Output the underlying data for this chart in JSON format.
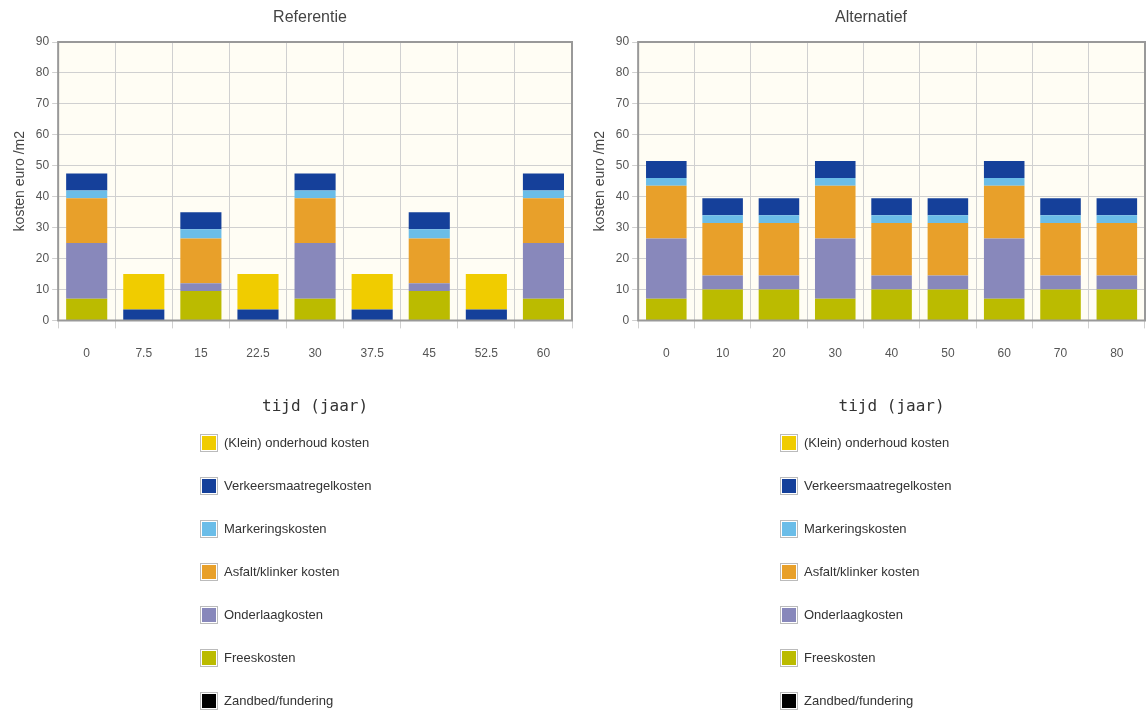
{
  "chart_data": [
    {
      "type": "bar",
      "title": "Referentie",
      "xlabel": "tijd (jaar)",
      "ylabel": "kosten euro /m2",
      "categories": [
        "0",
        "7.5",
        "15",
        "22.5",
        "30",
        "37.5",
        "45",
        "52.5",
        "60"
      ],
      "stacked": true,
      "ylim": [
        0,
        90
      ],
      "yticks": [
        0,
        10,
        20,
        30,
        40,
        50,
        60,
        70,
        80,
        90
      ],
      "grid": true,
      "legend": "bottom",
      "series": [
        {
          "name": "Zandbed/fundering",
          "color": "#000000",
          "values": [
            0,
            0,
            0,
            0,
            0,
            0,
            0,
            0,
            0
          ]
        },
        {
          "name": "Freeskosten",
          "color": "#bbbb00",
          "values": [
            7,
            0,
            9.5,
            0,
            7,
            0,
            9.5,
            0,
            7
          ]
        },
        {
          "name": "Onderlaagkosten",
          "color": "#8888bb",
          "values": [
            18,
            0,
            2.5,
            0,
            18,
            0,
            2.5,
            0,
            18
          ]
        },
        {
          "name": "Asfalt/klinker kosten",
          "color": "#e8a02a",
          "values": [
            14.5,
            0,
            14.5,
            0,
            14.5,
            0,
            14.5,
            0,
            14.5
          ]
        },
        {
          "name": "Markeringskosten",
          "color": "#6bbde8",
          "values": [
            2.5,
            0,
            3,
            0,
            2.5,
            0,
            3,
            0,
            2.5
          ]
        },
        {
          "name": "Verkeersmaatregelkosten",
          "color": "#15409a",
          "values": [
            5.5,
            3.5,
            5.5,
            3.5,
            5.5,
            3.5,
            5.5,
            3.5,
            5.5
          ]
        },
        {
          "name": "(Klein) onderhoud kosten",
          "color": "#f0cc00",
          "values": [
            0,
            11.5,
            0,
            11.5,
            0,
            11.5,
            0,
            11.5,
            0
          ]
        }
      ]
    },
    {
      "type": "bar",
      "title": "Alternatief",
      "xlabel": "tijd (jaar)",
      "ylabel": "kosten euro /m2",
      "categories": [
        "0",
        "10",
        "20",
        "30",
        "40",
        "50",
        "60",
        "70",
        "80"
      ],
      "stacked": true,
      "ylim": [
        0,
        90
      ],
      "yticks": [
        0,
        10,
        20,
        30,
        40,
        50,
        60,
        70,
        80,
        90
      ],
      "grid": true,
      "legend": "bottom",
      "series": [
        {
          "name": "Zandbed/fundering",
          "color": "#000000",
          "values": [
            0,
            0,
            0,
            0,
            0,
            0,
            0,
            0,
            0
          ]
        },
        {
          "name": "Freeskosten",
          "color": "#bbbb00",
          "values": [
            7,
            10,
            10,
            7,
            10,
            10,
            7,
            10,
            10
          ]
        },
        {
          "name": "Onderlaagkosten",
          "color": "#8888bb",
          "values": [
            19.5,
            4.5,
            4.5,
            19.5,
            4.5,
            4.5,
            19.5,
            4.5,
            4.5
          ]
        },
        {
          "name": "Asfalt/klinker kosten",
          "color": "#e8a02a",
          "values": [
            17,
            17,
            17,
            17,
            17,
            17,
            17,
            17,
            17
          ]
        },
        {
          "name": "Markeringskosten",
          "color": "#6bbde8",
          "values": [
            2.5,
            2.5,
            2.5,
            2.5,
            2.5,
            2.5,
            2.5,
            2.5,
            2.5
          ]
        },
        {
          "name": "Verkeersmaatregelkosten",
          "color": "#15409a",
          "values": [
            5.5,
            5.5,
            5.5,
            5.5,
            5.5,
            5.5,
            5.5,
            5.5,
            5.5
          ]
        },
        {
          "name": "(Klein) onderhoud kosten",
          "color": "#f0cc00",
          "values": [
            0,
            0,
            0,
            0,
            0,
            0,
            0,
            0,
            0
          ]
        }
      ]
    }
  ]
}
